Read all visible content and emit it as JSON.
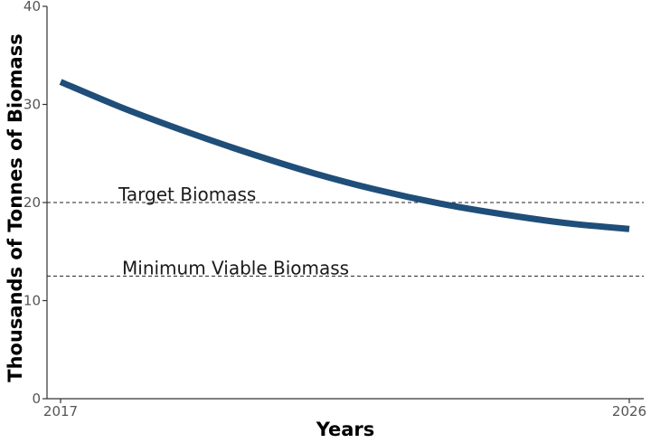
{
  "chart_data": {
    "type": "line",
    "title": "",
    "xlabel": "Years",
    "ylabel": "Thousands of Tonnes of Biomass",
    "xlim": [
      2017,
      2026
    ],
    "ylim": [
      0,
      40
    ],
    "x_ticks": [
      "2017",
      "2026"
    ],
    "y_ticks": [
      "0",
      "10",
      "20",
      "30",
      "40"
    ],
    "grid": false,
    "legend": "none",
    "series": [
      {
        "color": "#1f4e79",
        "x": [
          2017,
          2018,
          2019,
          2020,
          2021,
          2022,
          2023,
          2024,
          2025,
          2026
        ],
        "y": [
          32.3,
          29.6,
          27.2,
          25.0,
          23.0,
          21.3,
          19.9,
          18.8,
          17.9,
          17.3
        ]
      }
    ],
    "reference_lines": [
      {
        "label": "Target Biomass",
        "y": 20,
        "style": "dashed"
      },
      {
        "label": "Minimum Viable Biomass",
        "y": 12.5,
        "style": "dashed"
      }
    ]
  }
}
